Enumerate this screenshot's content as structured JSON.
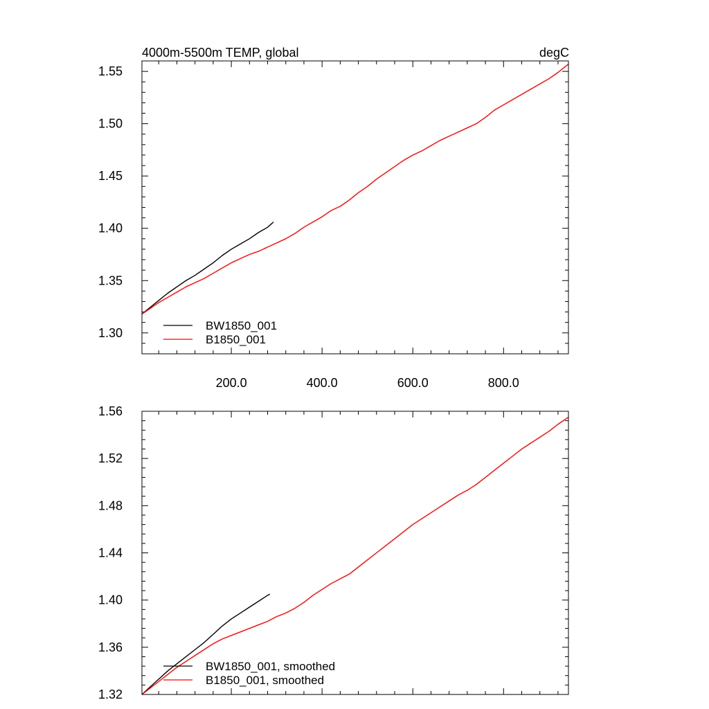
{
  "chart_data": [
    {
      "type": "line",
      "title_left": "4000m-5500m TEMP, global",
      "title_right": "degC",
      "xlim": [
        3,
        943
      ],
      "ylim": [
        1.28,
        1.56
      ],
      "x_ticks": [
        200,
        400,
        600,
        800
      ],
      "x_tick_labels": [
        "200.0",
        "400.0",
        "600.0",
        "800.0"
      ],
      "x_minor_step": 40,
      "y_ticks": [
        1.3,
        1.35,
        1.4,
        1.45,
        1.5,
        1.55
      ],
      "y_tick_labels": [
        "1.30",
        "1.35",
        "1.40",
        "1.45",
        "1.50",
        "1.55"
      ],
      "y_minor_step": 0.01,
      "legend_position": "bottom-left",
      "series": [
        {
          "name": "BW1850_001",
          "color": "#000000",
          "points": [
            [
              3,
              1.318
            ],
            [
              20,
              1.324
            ],
            [
              40,
              1.331
            ],
            [
              60,
              1.338
            ],
            [
              80,
              1.344
            ],
            [
              100,
              1.35
            ],
            [
              120,
              1.355
            ],
            [
              140,
              1.361
            ],
            [
              160,
              1.367
            ],
            [
              180,
              1.374
            ],
            [
              200,
              1.38
            ],
            [
              220,
              1.385
            ],
            [
              240,
              1.39
            ],
            [
              260,
              1.396
            ],
            [
              280,
              1.401
            ],
            [
              293,
              1.406
            ]
          ]
        },
        {
          "name": "B1850_001",
          "color": "#ff0000",
          "points": [
            [
              3,
              1.318
            ],
            [
              20,
              1.323
            ],
            [
              40,
              1.329
            ],
            [
              60,
              1.334
            ],
            [
              80,
              1.339
            ],
            [
              100,
              1.344
            ],
            [
              120,
              1.348
            ],
            [
              140,
              1.352
            ],
            [
              160,
              1.357
            ],
            [
              180,
              1.362
            ],
            [
              200,
              1.367
            ],
            [
              220,
              1.371
            ],
            [
              240,
              1.375
            ],
            [
              260,
              1.378
            ],
            [
              280,
              1.382
            ],
            [
              300,
              1.386
            ],
            [
              320,
              1.39
            ],
            [
              340,
              1.395
            ],
            [
              360,
              1.401
            ],
            [
              380,
              1.406
            ],
            [
              400,
              1.411
            ],
            [
              420,
              1.417
            ],
            [
              440,
              1.421
            ],
            [
              460,
              1.427
            ],
            [
              480,
              1.434
            ],
            [
              500,
              1.44
            ],
            [
              520,
              1.447
            ],
            [
              540,
              1.453
            ],
            [
              560,
              1.459
            ],
            [
              580,
              1.465
            ],
            [
              600,
              1.47
            ],
            [
              620,
              1.474
            ],
            [
              640,
              1.479
            ],
            [
              660,
              1.484
            ],
            [
              680,
              1.488
            ],
            [
              700,
              1.492
            ],
            [
              720,
              1.496
            ],
            [
              740,
              1.5
            ],
            [
              760,
              1.506
            ],
            [
              780,
              1.513
            ],
            [
              800,
              1.518
            ],
            [
              820,
              1.523
            ],
            [
              840,
              1.528
            ],
            [
              860,
              1.533
            ],
            [
              880,
              1.538
            ],
            [
              900,
              1.543
            ],
            [
              920,
              1.549
            ],
            [
              943,
              1.557
            ]
          ]
        }
      ]
    },
    {
      "type": "line",
      "xlim": [
        3,
        943
      ],
      "ylim": [
        1.32,
        1.56
      ],
      "x_ticks": [
        200,
        400,
        600,
        800
      ],
      "x_minor_step": 40,
      "y_ticks": [
        1.32,
        1.36,
        1.4,
        1.44,
        1.48,
        1.52,
        1.56
      ],
      "y_tick_labels": [
        "1.32",
        "1.36",
        "1.40",
        "1.44",
        "1.48",
        "1.52",
        "1.56"
      ],
      "y_minor_step": 0.008,
      "legend_position": "bottom-left",
      "series": [
        {
          "name": "BW1850_001, smoothed",
          "color": "#000000",
          "points": [
            [
              3,
              1.32
            ],
            [
              20,
              1.326
            ],
            [
              40,
              1.333
            ],
            [
              60,
              1.34
            ],
            [
              80,
              1.346
            ],
            [
              100,
              1.352
            ],
            [
              120,
              1.358
            ],
            [
              140,
              1.364
            ],
            [
              160,
              1.371
            ],
            [
              180,
              1.378
            ],
            [
              200,
              1.384
            ],
            [
              220,
              1.389
            ],
            [
              240,
              1.394
            ],
            [
              260,
              1.399
            ],
            [
              280,
              1.404
            ],
            [
              285,
              1.405
            ]
          ]
        },
        {
          "name": "B1850_001, smoothed",
          "color": "#ff0000",
          "points": [
            [
              3,
              1.32
            ],
            [
              20,
              1.325
            ],
            [
              40,
              1.331
            ],
            [
              60,
              1.337
            ],
            [
              80,
              1.343
            ],
            [
              100,
              1.348
            ],
            [
              120,
              1.353
            ],
            [
              140,
              1.358
            ],
            [
              160,
              1.363
            ],
            [
              180,
              1.367
            ],
            [
              200,
              1.37
            ],
            [
              220,
              1.373
            ],
            [
              240,
              1.376
            ],
            [
              260,
              1.379
            ],
            [
              280,
              1.382
            ],
            [
              300,
              1.386
            ],
            [
              320,
              1.389
            ],
            [
              340,
              1.393
            ],
            [
              360,
              1.398
            ],
            [
              380,
              1.404
            ],
            [
              400,
              1.409
            ],
            [
              420,
              1.414
            ],
            [
              440,
              1.418
            ],
            [
              460,
              1.422
            ],
            [
              480,
              1.428
            ],
            [
              500,
              1.434
            ],
            [
              520,
              1.44
            ],
            [
              540,
              1.446
            ],
            [
              560,
              1.452
            ],
            [
              580,
              1.458
            ],
            [
              600,
              1.464
            ],
            [
              620,
              1.469
            ],
            [
              640,
              1.474
            ],
            [
              660,
              1.479
            ],
            [
              680,
              1.484
            ],
            [
              700,
              1.489
            ],
            [
              720,
              1.493
            ],
            [
              740,
              1.498
            ],
            [
              760,
              1.504
            ],
            [
              780,
              1.51
            ],
            [
              800,
              1.516
            ],
            [
              820,
              1.522
            ],
            [
              840,
              1.528
            ],
            [
              860,
              1.533
            ],
            [
              880,
              1.538
            ],
            [
              900,
              1.543
            ],
            [
              920,
              1.549
            ],
            [
              943,
              1.555
            ]
          ]
        }
      ]
    }
  ]
}
